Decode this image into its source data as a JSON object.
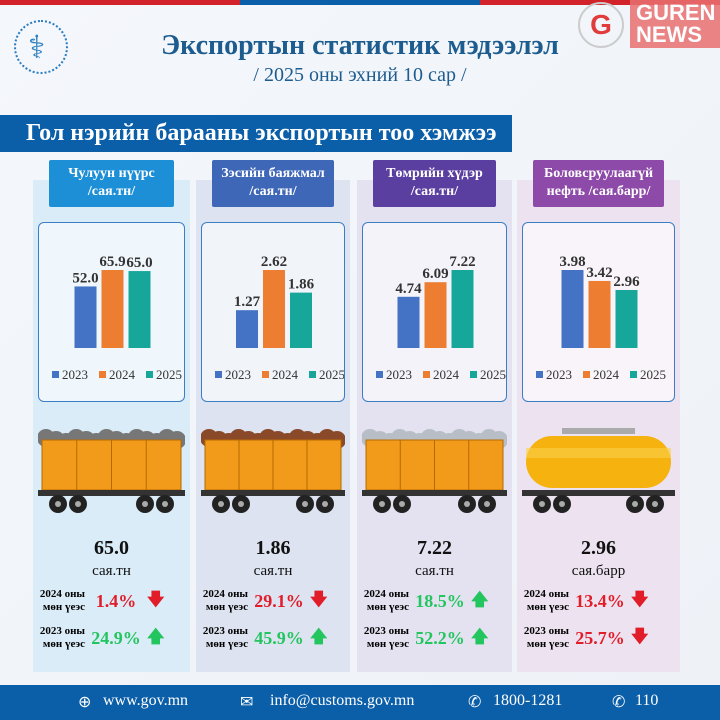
{
  "header": {
    "title": "Экспортын статистик мэдээлэл",
    "subtitle": "/ 2025 оны эхний 10 сар /",
    "watermark": "GUREN NEWS",
    "banner": "Гол нэрийн барааны экспортын тоо хэмжээ"
  },
  "colors": {
    "y2023": "#4472c4",
    "y2024": "#ed7d31",
    "y2025": "#16a79a",
    "up": "#22c55e",
    "down": "#e11d2a",
    "footer": "#0b5ea8"
  },
  "columns": [
    {
      "title": "Чулуун нүүрс",
      "unit_label": "/сая.тн/",
      "color": "#1d8fd6",
      "bg": "#d9ecf8",
      "value": "65.0",
      "unit": "сая.тн",
      "cmp": [
        {
          "label1": "2024 оны",
          "label2": "мөн үеэс",
          "pct": "1.4%",
          "dir": "down"
        },
        {
          "label1": "2023 оны",
          "label2": "мөн үеэс",
          "pct": "24.9%",
          "dir": "up"
        }
      ],
      "cargo": "coal"
    },
    {
      "title": "Зэсийн баяжмал",
      "unit_label": "/сая.тн/",
      "color": "#3f67b8",
      "bg": "#dde3f0",
      "value": "1.86",
      "unit": "сая.тн",
      "cmp": [
        {
          "label1": "2024 оны",
          "label2": "мөн үеэс",
          "pct": "29.1%",
          "dir": "down"
        },
        {
          "label1": "2023 оны",
          "label2": "мөн үеэс",
          "pct": "45.9%",
          "dir": "up"
        }
      ],
      "cargo": "copper"
    },
    {
      "title": "Төмрийн хүдэр",
      "unit_label": "/сая.тн/",
      "color": "#5b3fa0",
      "bg": "#e4e2f1",
      "value": "7.22",
      "unit": "сая.тн",
      "cmp": [
        {
          "label1": "2024 оны",
          "label2": "мөн үеэс",
          "pct": "18.5%",
          "dir": "up"
        },
        {
          "label1": "2023 оны",
          "label2": "мөн үеэс",
          "pct": "52.2%",
          "dir": "up"
        }
      ],
      "cargo": "iron"
    },
    {
      "title": "Боловсруулаагүй",
      "unit_label": "нефть /сая.барр/",
      "color": "#8e4aa8",
      "bg": "#ede3f0",
      "value": "2.96",
      "unit": "сая.барр",
      "cmp": [
        {
          "label1": "2024 оны",
          "label2": "мөн үеэс",
          "pct": "13.4%",
          "dir": "down"
        },
        {
          "label1": "2023 оны",
          "label2": "мөн үеэс",
          "pct": "25.7%",
          "dir": "down"
        }
      ],
      "cargo": "oil"
    }
  ],
  "chart_data": [
    {
      "type": "bar",
      "categories": [
        "2023",
        "2024",
        "2025"
      ],
      "values": [
        52.0,
        65.9,
        65.0
      ],
      "labels": [
        "52.0",
        "65.9",
        "65.0"
      ]
    },
    {
      "type": "bar",
      "categories": [
        "2023",
        "2024",
        "2025"
      ],
      "values": [
        1.27,
        2.62,
        1.86
      ],
      "labels": [
        "1.27",
        "2.62",
        "1.86"
      ]
    },
    {
      "type": "bar",
      "categories": [
        "2023",
        "2024",
        "2025"
      ],
      "values": [
        4.74,
        6.09,
        7.22
      ],
      "labels": [
        "4.74",
        "6.09",
        "7.22"
      ]
    },
    {
      "type": "bar",
      "categories": [
        "2023",
        "2024",
        "2025"
      ],
      "values": [
        3.98,
        3.42,
        2.96
      ],
      "labels": [
        "3.98",
        "3.42",
        "2.96"
      ]
    }
  ],
  "footer": {
    "web": "www.gov.mn",
    "email": "info@customs.gov.mn",
    "phone1": "1800-1281",
    "phone2": "110"
  }
}
